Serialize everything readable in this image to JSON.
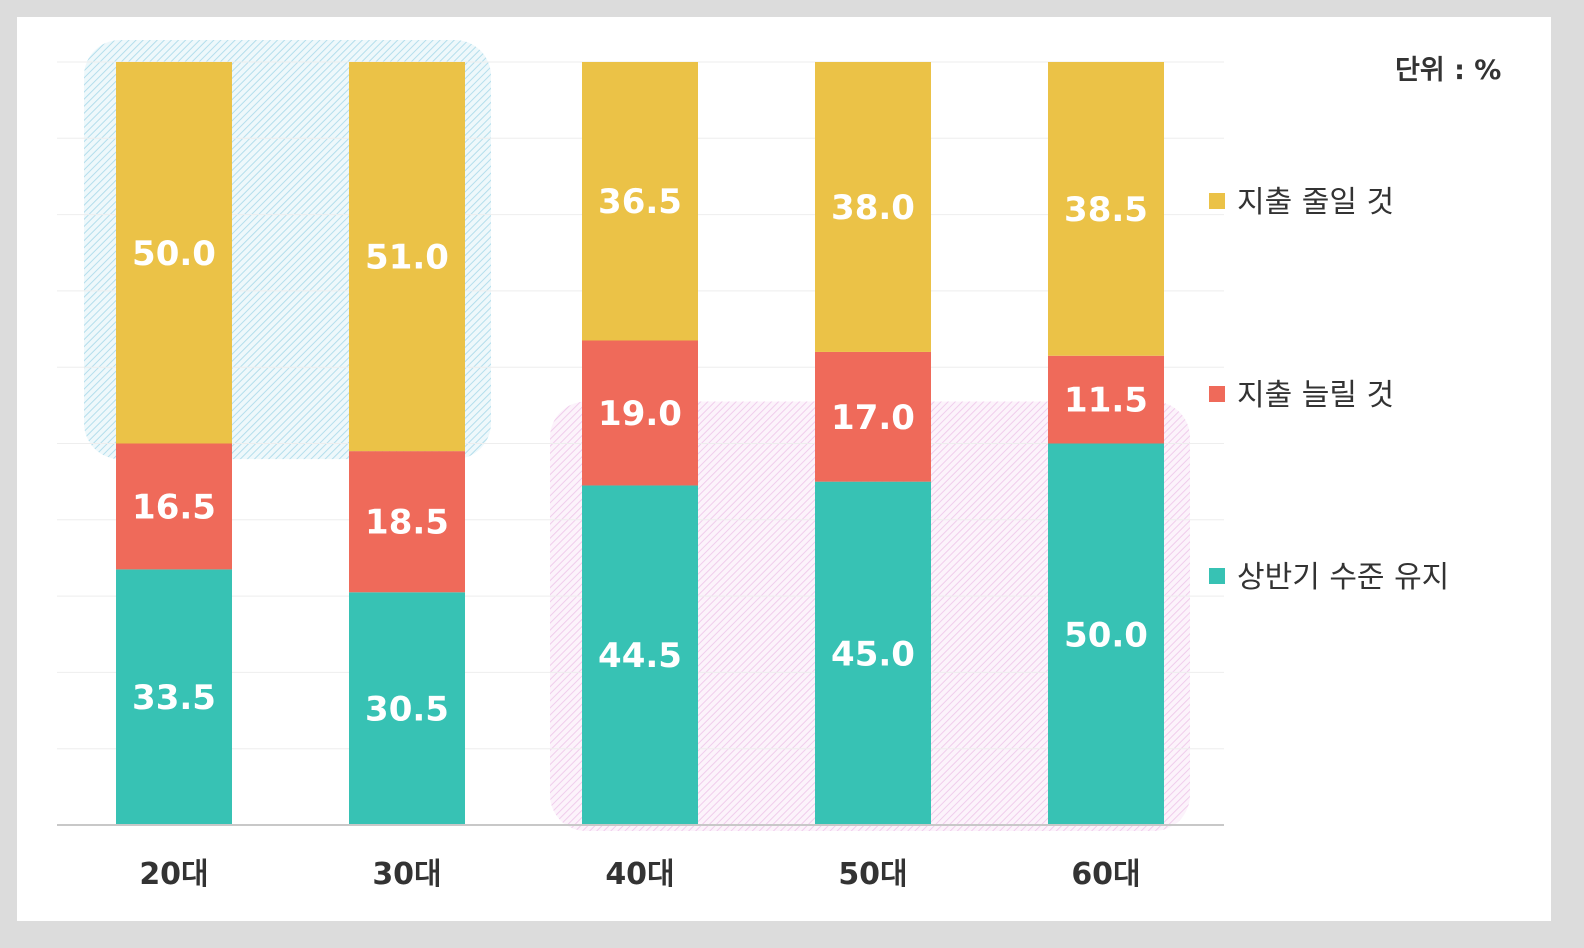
{
  "chart_data": {
    "type": "bar",
    "stacked": true,
    "categories": [
      "20대",
      "30대",
      "40대",
      "50대",
      "60대"
    ],
    "series": [
      {
        "name": "상반기 수준 유지",
        "values": [
          33.5,
          30.5,
          44.5,
          45.0,
          50.0
        ],
        "labels": [
          "33.5",
          "30.5",
          "44.5",
          "45.0",
          "50.0"
        ],
        "color": "#37c2b4"
      },
      {
        "name": "지출 늘릴 것",
        "values": [
          16.5,
          18.5,
          19.0,
          17.0,
          11.5
        ],
        "labels": [
          "16.5",
          "18.5",
          "19.0",
          "17.0",
          "11.5"
        ],
        "color": "#ef6a5a"
      },
      {
        "name": "지출 줄일 것",
        "values": [
          50.0,
          51.0,
          36.5,
          38.0,
          38.5
        ],
        "labels": [
          "50.0",
          "51.0",
          "36.5",
          "38.0",
          "38.5"
        ],
        "color": "#ebc247"
      }
    ],
    "unit_label": "단위 : %",
    "ylim": [
      0,
      100
    ],
    "grid": true,
    "legend_position": "right",
    "highlights": [
      {
        "categories": [
          "20대",
          "30대"
        ],
        "series": "지출 줄일 것",
        "color": "#9fd6e8"
      },
      {
        "categories": [
          "40대",
          "50대",
          "60대"
        ],
        "series": "상반기 수준 유지",
        "color": "#ecbde4"
      }
    ]
  }
}
